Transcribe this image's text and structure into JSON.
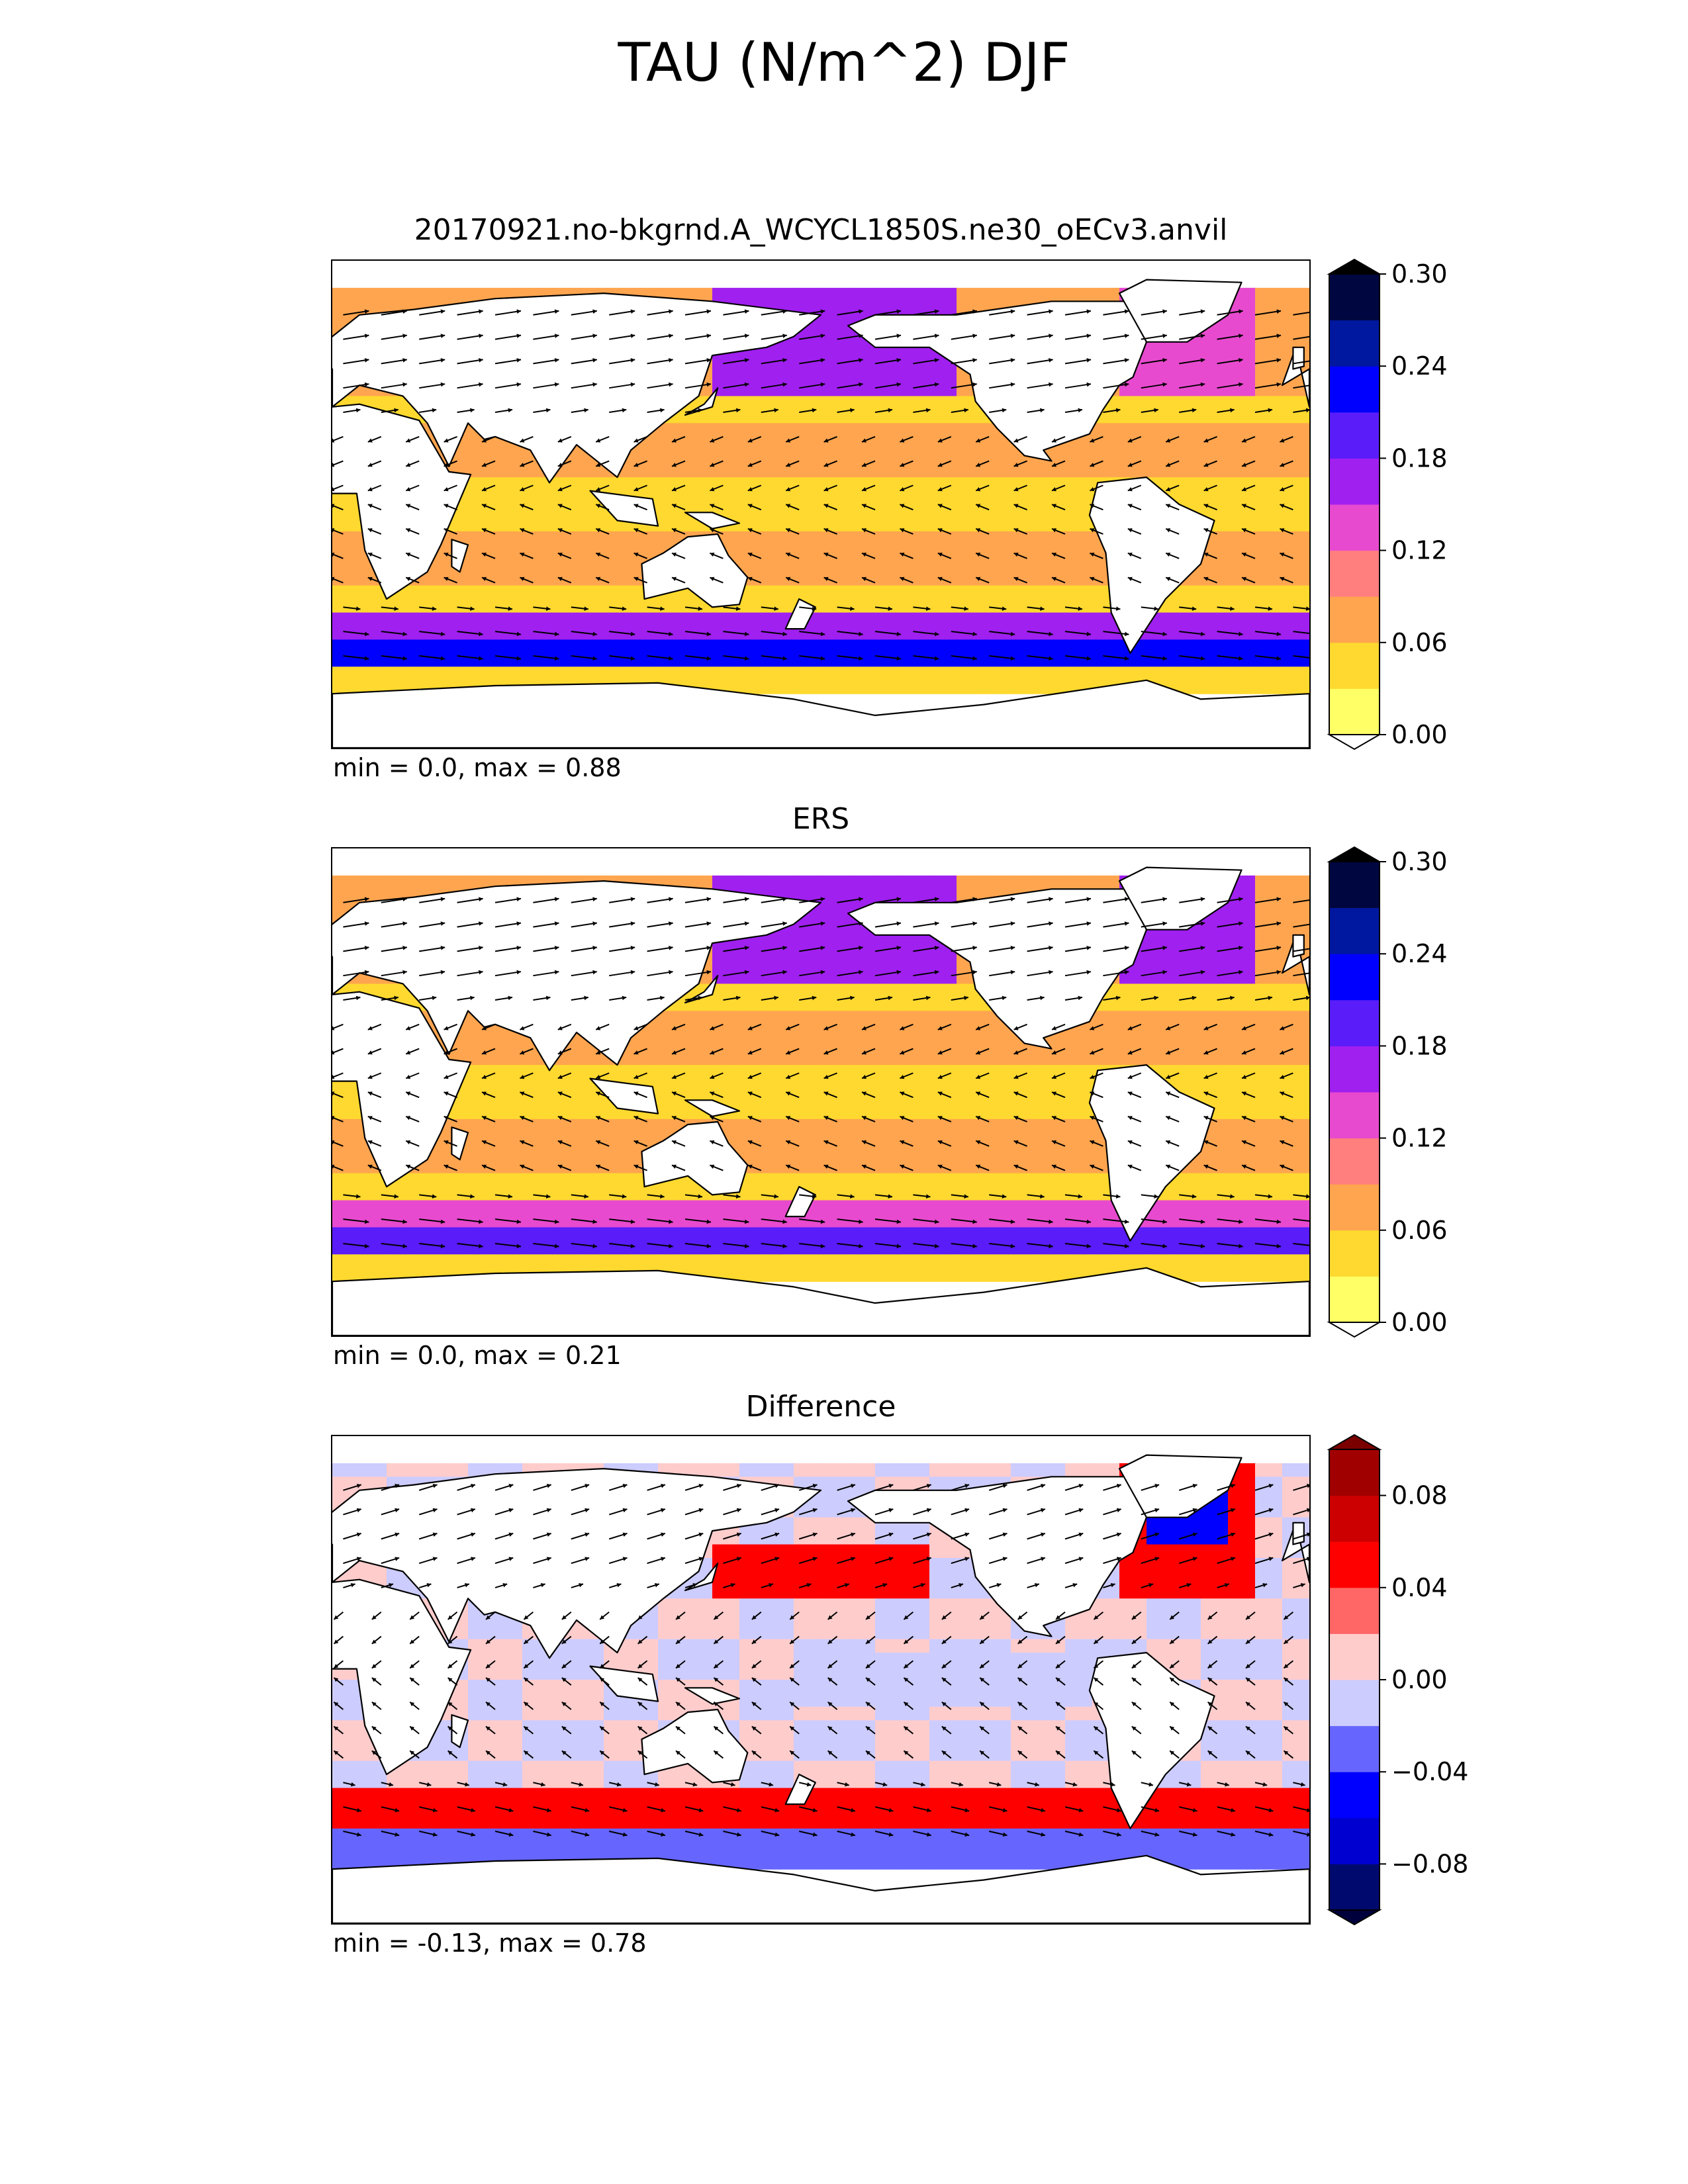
{
  "suptitle": "TAU (N/m^2) DJF",
  "panels": [
    {
      "title": "20170921.no-bkgrnd.A_WCYCL1850S.ne30_oECv3.anvil",
      "stats": "min = 0.0, max = 0.88"
    },
    {
      "title": "ERS",
      "stats": "min = 0.0, max = 0.21"
    },
    {
      "title": "Difference",
      "stats": "min = -0.13, max = 0.78"
    }
  ],
  "colorbars": [
    {
      "ticks": [
        "0.00",
        "0.06",
        "0.12",
        "0.18",
        "0.24",
        "0.30"
      ],
      "colors": [
        "#ffff66",
        "#ffd92f",
        "#ffa54f",
        "#ff7f7f",
        "#e84acf",
        "#a020f0",
        "#5a1cf8",
        "#0000ff",
        "#0018a0",
        "#000640"
      ],
      "under": "#ffffff",
      "over": "#000000"
    },
    {
      "ticks": [
        "0.00",
        "0.06",
        "0.12",
        "0.18",
        "0.24",
        "0.30"
      ],
      "colors": [
        "#ffff66",
        "#ffd92f",
        "#ffa54f",
        "#ff7f7f",
        "#e84acf",
        "#a020f0",
        "#5a1cf8",
        "#0000ff",
        "#0018a0",
        "#000640"
      ],
      "under": "#ffffff",
      "over": "#000000"
    },
    {
      "ticks": [
        "−0.08",
        "−0.04",
        "0.00",
        "0.04",
        "0.08"
      ],
      "colors": [
        "#000a6e",
        "#0000d0",
        "#0000ff",
        "#6666ff",
        "#ccccff",
        "#ffcccc",
        "#ff6666",
        "#ff0000",
        "#cc0000",
        "#a00000"
      ],
      "under": "#00003c",
      "over": "#7a0000"
    }
  ],
  "chart_data": [
    {
      "type": "heatmap",
      "title": "20170921.no-bkgrnd.A_WCYCL1850S.ne30_oECv3.anvil",
      "variable": "surface wind stress magnitude with vectors",
      "range": [
        0.0,
        0.88
      ],
      "colorbar_range": [
        0.0,
        0.3
      ],
      "features": [
        "strong Southern Ocean westerly band 0.18-0.30",
        "North Pacific storm track 0.15-0.24",
        "North Atlantic storm track 0.12-0.18",
        "trade winds 0.03-0.09"
      ]
    },
    {
      "type": "heatmap",
      "title": "ERS",
      "variable": "surface wind stress magnitude with vectors",
      "range": [
        0.0,
        0.21
      ],
      "colorbar_range": [
        0.0,
        0.3
      ],
      "features": [
        "Southern Ocean westerly band 0.12-0.21",
        "North Pacific storm track 0.12-0.18",
        "North Atlantic storm track 0.15-0.21",
        "trade winds 0.03-0.09"
      ]
    },
    {
      "type": "heatmap",
      "title": "Difference",
      "variable": "model minus ERS wind stress",
      "range": [
        -0.13,
        0.78
      ],
      "colorbar_range": [
        -0.1,
        0.1
      ],
      "features": [
        "positive bias 0.04-0.08 in Southern Ocean near 50S",
        "negative bias -0.04 to -0.08 near 60S",
        "positive bias in North Pacific",
        "negative bias in Labrador Sea"
      ]
    }
  ]
}
